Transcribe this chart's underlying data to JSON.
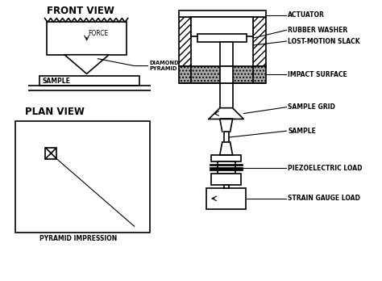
{
  "bg_color": "#ffffff",
  "title_front": "FRONT VIEW",
  "title_plan": "PLAN VIEW",
  "labels": {
    "actuator": "ACTUATOR",
    "rubber_washer": "RUBBER WASHER",
    "lost_motion": "LOST-MOTION SLACK",
    "impact_surface": "IMPACT SURFACE",
    "sample_grid": "SAMPLE GRID",
    "sample": "SAMPLE",
    "piezoelectric": "PIEZOELECTRIC LOAD",
    "strain_gauge": "STRAIN GAUGE LOAD",
    "force": "FORCE",
    "diamond_pyramid": "DIAMOND\nPYRAMID",
    "sample_left": "SAMPLE",
    "pyramid_impression": "PYRAMID IMPRESSION"
  }
}
